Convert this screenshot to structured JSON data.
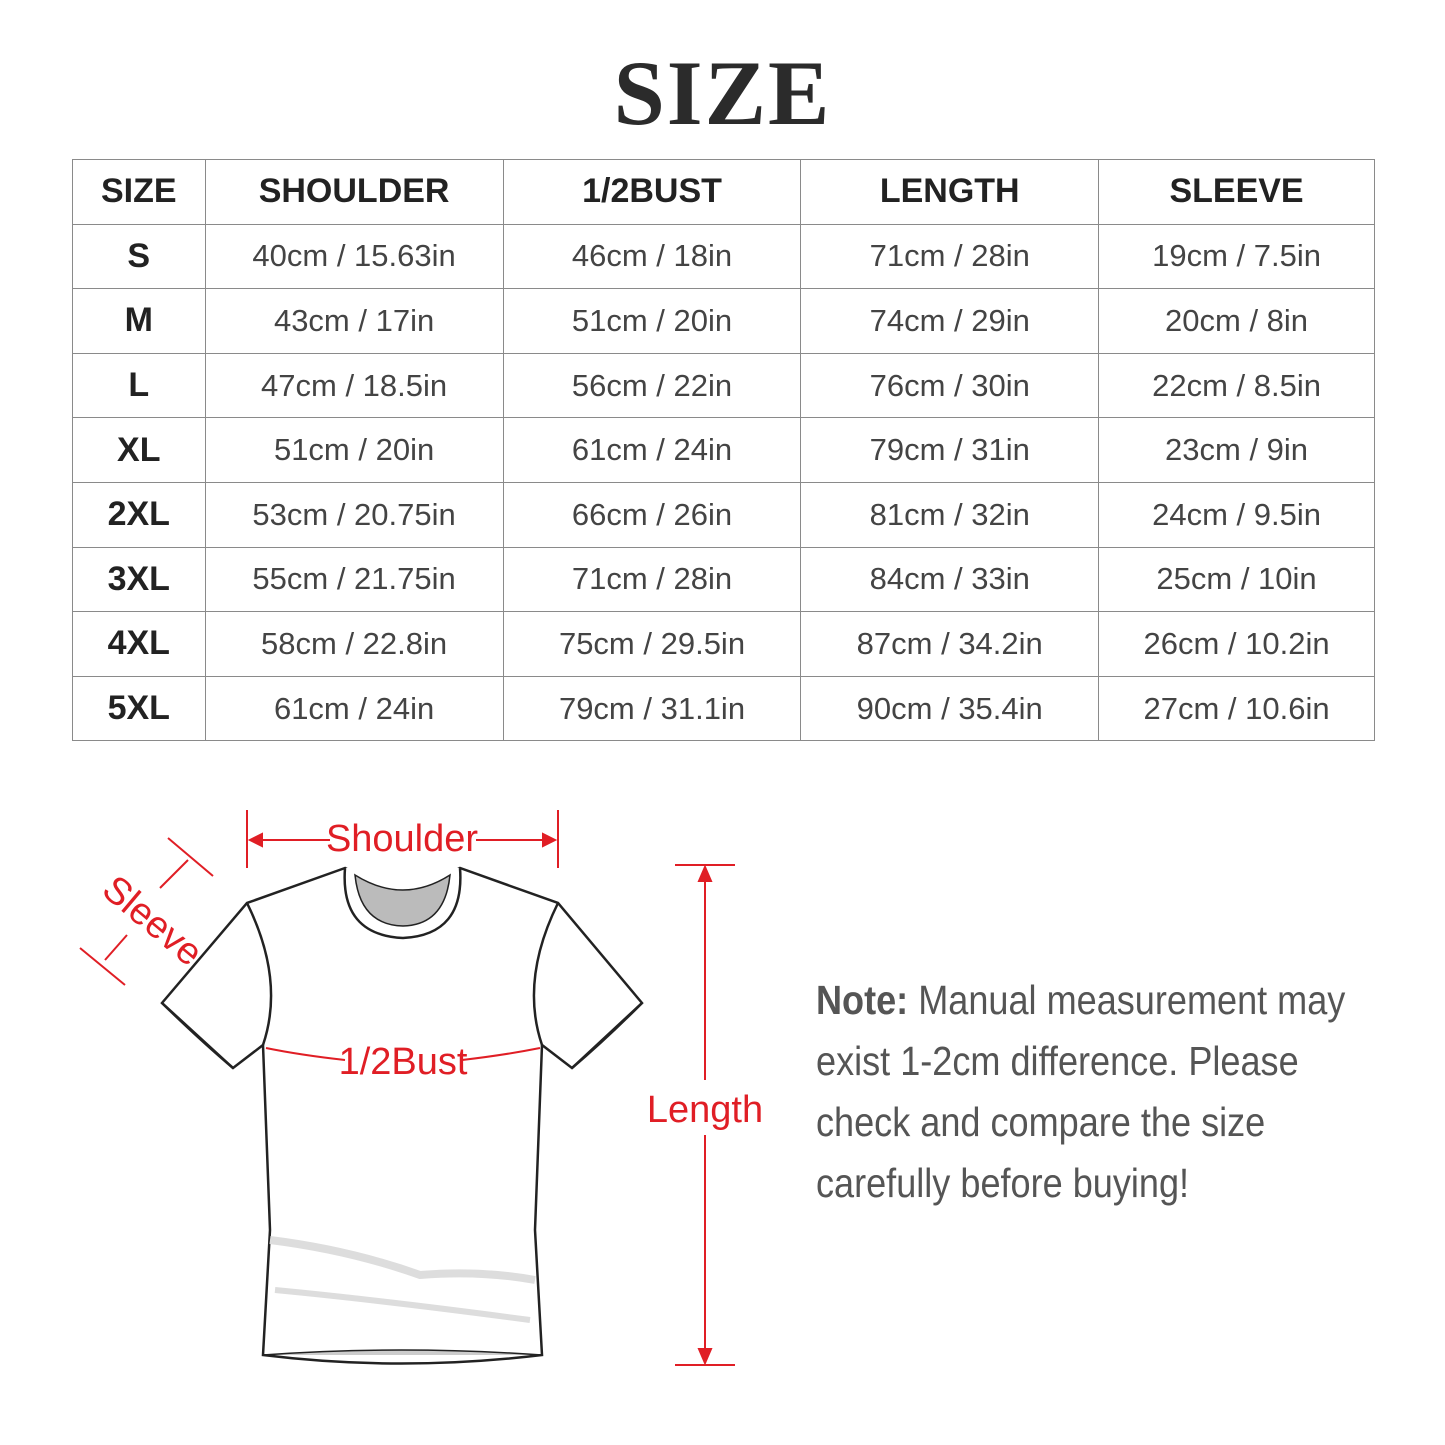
{
  "title": "SIZE",
  "table": {
    "headers": [
      "SIZE",
      "SHOULDER",
      "1/2BUST",
      "LENGTH",
      "SLEEVE"
    ],
    "rows": [
      [
        "S",
        "40cm / 15.63in",
        "46cm / 18in",
        "71cm / 28in",
        "19cm / 7.5in"
      ],
      [
        "M",
        "43cm / 17in",
        "51cm / 20in",
        "74cm / 29in",
        "20cm / 8in"
      ],
      [
        "L",
        "47cm / 18.5in",
        "56cm / 22in",
        "76cm / 30in",
        "22cm / 8.5in"
      ],
      [
        "XL",
        "51cm / 20in",
        "61cm / 24in",
        "79cm / 31in",
        "23cm / 9in"
      ],
      [
        "2XL",
        "53cm / 20.75in",
        "66cm / 26in",
        "81cm / 32in",
        "24cm / 9.5in"
      ],
      [
        "3XL",
        "55cm / 21.75in",
        "71cm / 28in",
        "84cm / 33in",
        "25cm / 10in"
      ],
      [
        "4XL",
        "58cm / 22.8in",
        "75cm / 29.5in",
        "87cm / 34.2in",
        "26cm / 10.2in"
      ],
      [
        "5XL",
        "61cm / 24in",
        "79cm / 31.1in",
        "90cm / 35.4in",
        "27cm / 10.6in"
      ]
    ]
  },
  "diagram": {
    "shoulder": "Shoulder",
    "sleeve": "Sleeve",
    "bust": "1/2Bust",
    "length": "Length",
    "accent": "#e01e25"
  },
  "note": {
    "label": "Note:",
    "text": " Manual measurement may exist 1-2cm difference. Please check and compare the size carefully before buying!"
  }
}
